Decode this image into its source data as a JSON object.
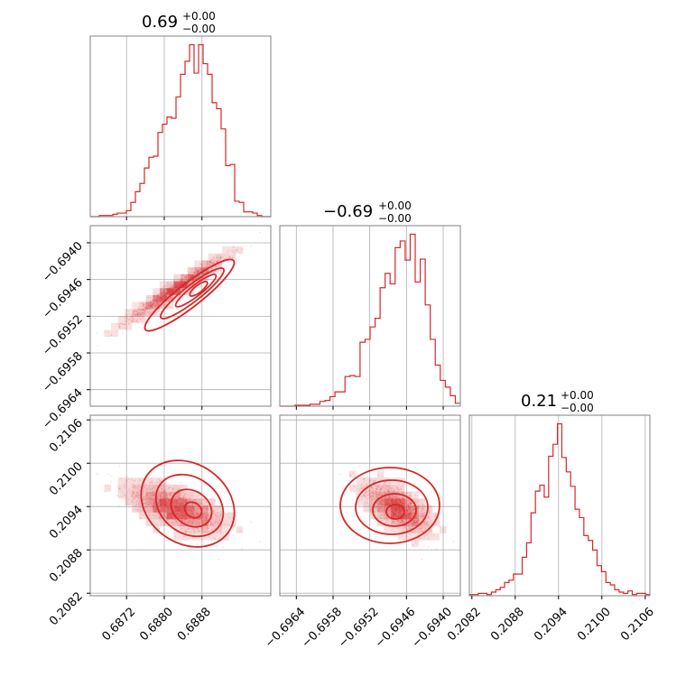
{
  "chart_data": {
    "type": "corner",
    "color": "#d62728",
    "parameters": [
      {
        "index": 0,
        "title_value": "0.69",
        "title_plus": "+0.00",
        "title_minus": "−0.00",
        "range": [
          0.68643,
          0.69026
        ],
        "ticks": [
          0.6872,
          0.688,
          0.6888
        ],
        "tick_labels": [
          "0.6872",
          "0.6880",
          "0.6888"
        ],
        "hist_y": [
          0,
          0,
          1,
          1,
          1,
          2,
          3,
          3,
          5,
          12,
          21,
          28,
          41,
          50,
          51,
          71,
          78,
          84,
          83,
          101,
          120,
          131,
          145,
          121,
          145,
          129,
          120,
          96,
          91,
          74,
          43,
          44,
          13,
          12,
          4,
          4,
          3,
          1,
          0,
          0
        ]
      },
      {
        "index": 1,
        "title_value": "−0.69",
        "title_plus": "+0.00",
        "title_minus": "−0.00",
        "range": [
          -0.69667,
          -0.69372
        ],
        "ticks": [
          -0.6964,
          -0.6958,
          -0.6952,
          -0.6946,
          -0.694
        ],
        "tick_labels": [
          "−0.6964",
          "−0.6958",
          "−0.6952",
          "−0.6946",
          "−0.6940"
        ],
        "hist_y": [
          0,
          0,
          0,
          1,
          1,
          1,
          2,
          2,
          5,
          6,
          10,
          15,
          15,
          31,
          32,
          31,
          67,
          70,
          83,
          92,
          124,
          139,
          128,
          166,
          173,
          153,
          180,
          130,
          154,
          106,
          70,
          43,
          27,
          20,
          11,
          3
        ]
      },
      {
        "index": 2,
        "title_value": "0.21",
        "title_plus": "+0.00",
        "title_minus": "−0.00",
        "range": [
          0.208165,
          0.210665
        ],
        "ticks": [
          0.2082,
          0.2088,
          0.2094,
          0.21,
          0.2106
        ],
        "tick_labels": [
          "0.2082",
          "0.2088",
          "0.2094",
          "0.2100",
          "0.2106"
        ],
        "hist_y": [
          1,
          1,
          2,
          2,
          1,
          3,
          5,
          7,
          11,
          13,
          18,
          18,
          32,
          44,
          69,
          87,
          92,
          82,
          116,
          126,
          143,
          115,
          103,
          91,
          72,
          65,
          50,
          46,
          38,
          25,
          20,
          11,
          9,
          5,
          3,
          2,
          4,
          1,
          2,
          2,
          1
        ]
      }
    ],
    "grid": true,
    "contour_levels": 4
  }
}
